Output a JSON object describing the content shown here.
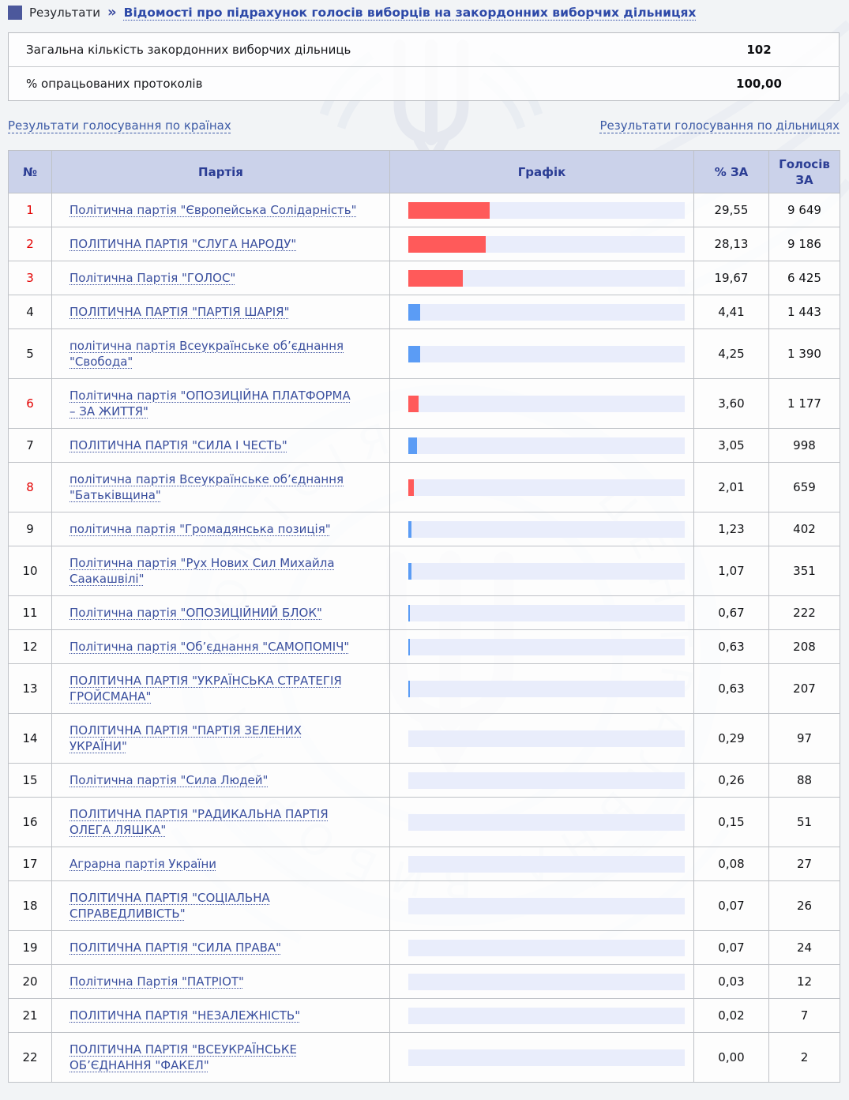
{
  "breadcrumb": {
    "section": "Результати",
    "separator": "»",
    "title": "Відомості про підрахунок голосів виборців на закордонних виборчих дільницях"
  },
  "summary": {
    "rows": [
      {
        "label": "Загальна кількість закордонних виборчих дільниць",
        "value": "102"
      },
      {
        "label": "% опрацьованих протоколів",
        "value": "100,00"
      }
    ]
  },
  "nav": {
    "left_link": "Результати голосування по країнах",
    "right_link": "Результати голосування по дільницях"
  },
  "table": {
    "headers": {
      "num": "№",
      "party": "Партія",
      "chart": "Графік",
      "percent": "% ЗА",
      "votes": "Голосів ЗА"
    },
    "rows": [
      {
        "num": "1",
        "party": "Політична партія \"Європейська Солідарність\"",
        "percent": "29,55",
        "votes": "9 649",
        "highlight": true
      },
      {
        "num": "2",
        "party": "ПОЛІТИЧНА ПАРТІЯ \"СЛУГА НАРОДУ\"",
        "percent": "28,13",
        "votes": "9 186",
        "highlight": true
      },
      {
        "num": "3",
        "party": "Політична Партія \"ГОЛОС\"",
        "percent": "19,67",
        "votes": "6 425",
        "highlight": true
      },
      {
        "num": "4",
        "party": "ПОЛІТИЧНА ПАРТІЯ \"ПАРТІЯ ШАРІЯ\"",
        "percent": "4,41",
        "votes": "1 443",
        "highlight": false
      },
      {
        "num": "5",
        "party": "політична партія Всеукраїнське об’єднання \"Свобода\"",
        "percent": "4,25",
        "votes": "1 390",
        "highlight": false
      },
      {
        "num": "6",
        "party": "Політична партія \"ОПОЗИЦІЙНА ПЛАТФОРМА – ЗА ЖИТТЯ\"",
        "percent": "3,60",
        "votes": "1 177",
        "highlight": true
      },
      {
        "num": "7",
        "party": "ПОЛІТИЧНА ПАРТІЯ \"СИЛА І ЧЕСТЬ\"",
        "percent": "3,05",
        "votes": "998",
        "highlight": false
      },
      {
        "num": "8",
        "party": "політична партія Всеукраїнське об’єднання \"Батьківщина\"",
        "percent": "2,01",
        "votes": "659",
        "highlight": true
      },
      {
        "num": "9",
        "party": "політична партія \"Громадянська позиція\"",
        "percent": "1,23",
        "votes": "402",
        "highlight": false
      },
      {
        "num": "10",
        "party": "Політична партія \"Рух Нових Сил Михайла Саакашвілі\"",
        "percent": "1,07",
        "votes": "351",
        "highlight": false
      },
      {
        "num": "11",
        "party": "Політична партія \"ОПОЗИЦІЙНИЙ БЛОК\"",
        "percent": "0,67",
        "votes": "222",
        "highlight": false
      },
      {
        "num": "12",
        "party": "Політична партія \"Об’єднання \"САМОПОМІЧ\"",
        "percent": "0,63",
        "votes": "208",
        "highlight": false
      },
      {
        "num": "13",
        "party": "ПОЛІТИЧНА ПАРТІЯ \"УКРАЇНСЬКА СТРАТЕГІЯ ГРОЙСМАНА\"",
        "percent": "0,63",
        "votes": "207",
        "highlight": false
      },
      {
        "num": "14",
        "party": "ПОЛІТИЧНА ПАРТІЯ \"ПАРТІЯ ЗЕЛЕНИХ УКРАЇНИ\"",
        "percent": "0,29",
        "votes": "97",
        "highlight": false
      },
      {
        "num": "15",
        "party": "Політична партія \"Сила Людей\"",
        "percent": "0,26",
        "votes": "88",
        "highlight": false
      },
      {
        "num": "16",
        "party": "ПОЛІТИЧНА ПАРТІЯ \"РАДИКАЛЬНА ПАРТІЯ ОЛЕГА ЛЯШКА\"",
        "percent": "0,15",
        "votes": "51",
        "highlight": false
      },
      {
        "num": "17",
        "party": "Аграрна партія України",
        "percent": "0,08",
        "votes": "27",
        "highlight": false
      },
      {
        "num": "18",
        "party": "ПОЛІТИЧНА ПАРТІЯ \"СОЦІАЛЬНА СПРАВЕДЛИВІСТЬ\"",
        "percent": "0,07",
        "votes": "26",
        "highlight": false
      },
      {
        "num": "19",
        "party": "ПОЛІТИЧНА ПАРТІЯ \"СИЛА ПРАВА\"",
        "percent": "0,07",
        "votes": "24",
        "highlight": false
      },
      {
        "num": "20",
        "party": "Політична Партія \"ПАТРІОТ\"",
        "percent": "0,03",
        "votes": "12",
        "highlight": false
      },
      {
        "num": "21",
        "party": "ПОЛІТИЧНА ПАРТІЯ \"НЕЗАЛЕЖНІСТЬ\"",
        "percent": "0,02",
        "votes": "7",
        "highlight": false
      },
      {
        "num": "22",
        "party": "ПОЛІТИЧНА ПАРТІЯ \"ВСЕУКРАЇНСЬКЕ ОБ’ЄДНАННЯ \"ФАКЕЛ\"",
        "percent": "0,00",
        "votes": "2",
        "highlight": false
      }
    ]
  },
  "colors": {
    "bar_red": "#ff5a5a",
    "bar_blue": "#5b9cf5",
    "bar_track": "#e9edfb",
    "highlight_number": "#e30000",
    "header_bg": "#cbd2ea"
  },
  "watermark_name": "Емблема ЦВК"
}
